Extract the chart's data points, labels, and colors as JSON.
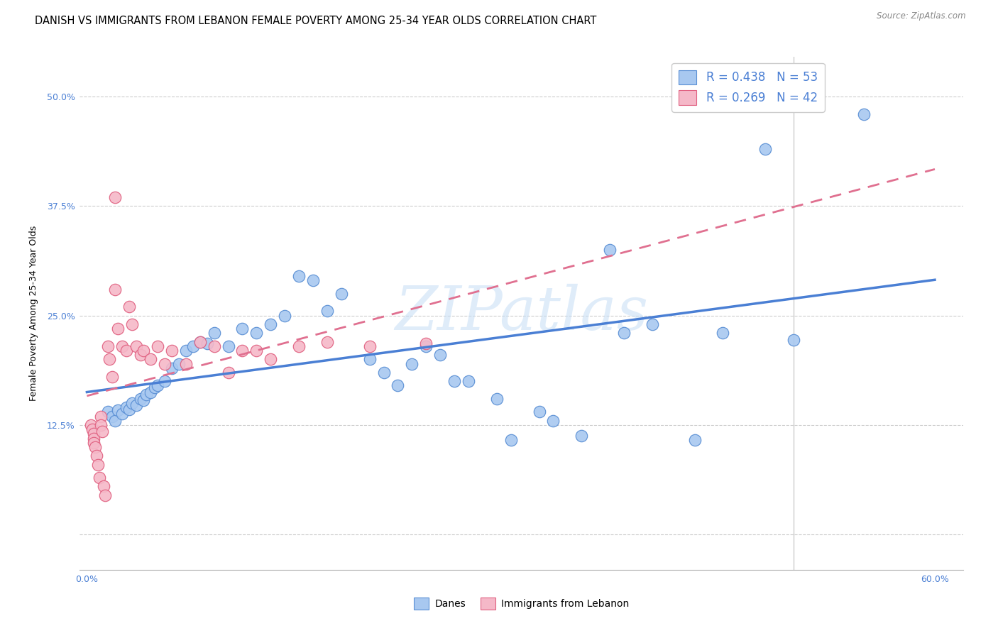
{
  "title": "DANISH VS IMMIGRANTS FROM LEBANON FEMALE POVERTY AMONG 25-34 YEAR OLDS CORRELATION CHART",
  "source": "Source: ZipAtlas.com",
  "ylabel": "Female Poverty Among 25-34 Year Olds",
  "xlim": [
    -0.005,
    0.62
  ],
  "ylim": [
    -0.04,
    0.545
  ],
  "blue_R": 0.438,
  "blue_N": 53,
  "pink_R": 0.269,
  "pink_N": 42,
  "blue_fill": "#a8c8f0",
  "pink_fill": "#f5b8c8",
  "blue_edge": "#5a8fd4",
  "pink_edge": "#e06080",
  "blue_line": "#4a7fd4",
  "pink_line": "#e07090",
  "watermark": "ZIPatlas",
  "legend_blue": "Danes",
  "legend_pink": "Immigrants from Lebanon",
  "title_fontsize": 10.5,
  "ylabel_fontsize": 9,
  "tick_fontsize": 9,
  "legend_fontsize": 12,
  "source_fontsize": 8.5,
  "blue_x": [
    0.015,
    0.018,
    0.02,
    0.022,
    0.025,
    0.028,
    0.03,
    0.032,
    0.035,
    0.038,
    0.04,
    0.042,
    0.045,
    0.048,
    0.05,
    0.055,
    0.06,
    0.065,
    0.07,
    0.075,
    0.08,
    0.085,
    0.09,
    0.1,
    0.11,
    0.12,
    0.13,
    0.14,
    0.15,
    0.16,
    0.17,
    0.18,
    0.2,
    0.21,
    0.22,
    0.23,
    0.24,
    0.25,
    0.26,
    0.27,
    0.29,
    0.3,
    0.32,
    0.33,
    0.35,
    0.37,
    0.38,
    0.4,
    0.43,
    0.45,
    0.48,
    0.5,
    0.55
  ],
  "blue_y": [
    0.14,
    0.135,
    0.13,
    0.142,
    0.138,
    0.145,
    0.143,
    0.15,
    0.148,
    0.155,
    0.153,
    0.16,
    0.162,
    0.168,
    0.17,
    0.175,
    0.19,
    0.195,
    0.21,
    0.215,
    0.22,
    0.218,
    0.23,
    0.215,
    0.235,
    0.23,
    0.24,
    0.25,
    0.295,
    0.29,
    0.255,
    0.275,
    0.2,
    0.185,
    0.17,
    0.195,
    0.215,
    0.205,
    0.175,
    0.175,
    0.155,
    0.108,
    0.14,
    0.13,
    0.113,
    0.325,
    0.23,
    0.24,
    0.108,
    0.23,
    0.44,
    0.222,
    0.48
  ],
  "pink_x": [
    0.003,
    0.004,
    0.005,
    0.005,
    0.005,
    0.006,
    0.007,
    0.008,
    0.009,
    0.01,
    0.01,
    0.011,
    0.012,
    0.013,
    0.015,
    0.016,
    0.018,
    0.02,
    0.02,
    0.022,
    0.025,
    0.028,
    0.03,
    0.032,
    0.035,
    0.038,
    0.04,
    0.045,
    0.05,
    0.055,
    0.06,
    0.07,
    0.08,
    0.09,
    0.1,
    0.11,
    0.12,
    0.13,
    0.15,
    0.17,
    0.2,
    0.24
  ],
  "pink_y": [
    0.125,
    0.12,
    0.115,
    0.11,
    0.105,
    0.1,
    0.09,
    0.08,
    0.065,
    0.135,
    0.125,
    0.118,
    0.055,
    0.045,
    0.215,
    0.2,
    0.18,
    0.385,
    0.28,
    0.235,
    0.215,
    0.21,
    0.26,
    0.24,
    0.215,
    0.205,
    0.21,
    0.2,
    0.215,
    0.195,
    0.21,
    0.195,
    0.22,
    0.215,
    0.185,
    0.21,
    0.21,
    0.2,
    0.215,
    0.22,
    0.215,
    0.218
  ]
}
